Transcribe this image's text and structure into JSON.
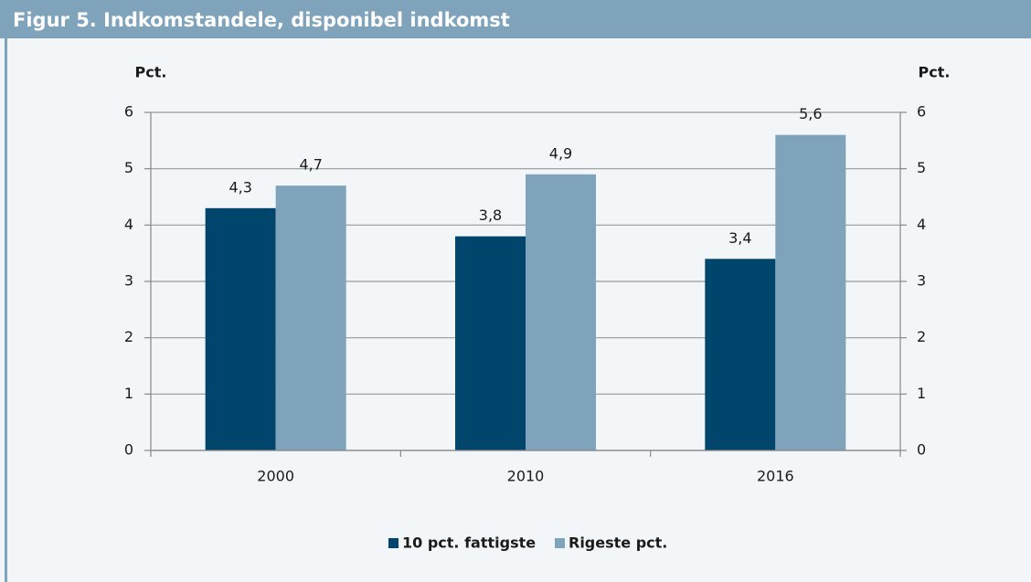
{
  "chart_data": {
    "type": "bar",
    "title": "Figur 5. Indkomstandele, disponibel indkomst",
    "ylabel": "Pct.",
    "y2label": "Pct.",
    "categories": [
      "2000",
      "2010",
      "2016"
    ],
    "series": [
      {
        "name": "10 pct. fattigste",
        "color": "#00456b",
        "values": [
          4.3,
          3.8,
          3.4
        ],
        "value_labels": [
          "4,3",
          "3,8",
          "3,4"
        ]
      },
      {
        "name": "Rigeste pct.",
        "color": "#7fa3bb",
        "values": [
          4.7,
          4.9,
          5.6
        ],
        "value_labels": [
          "4,7",
          "4,9",
          "5,6"
        ]
      }
    ],
    "ylim": [
      0,
      6
    ],
    "yticks": [
      0,
      1,
      2,
      3,
      4,
      5,
      6
    ],
    "y2lim": [
      0,
      6
    ],
    "y2ticks": [
      0,
      1,
      2,
      3,
      4,
      5,
      6
    ],
    "grid": true,
    "legend": "bottom"
  }
}
